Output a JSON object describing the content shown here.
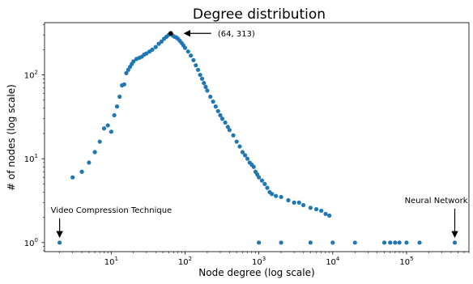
{
  "chart_data": {
    "type": "scatter",
    "title": "Degree distribution",
    "xlabel": "Node degree (log scale)",
    "ylabel": "# of nodes (log scale)",
    "xscale": "log",
    "yscale": "log",
    "xlim": [
      1.25,
      700000
    ],
    "ylim": [
      0.78,
      420
    ],
    "grid": false,
    "legend": "none",
    "marker_color": "#1f77b4",
    "highlight_color": "#000000",
    "x_ticks": [
      {
        "base": "10",
        "exp": "1",
        "value": 10
      },
      {
        "base": "10",
        "exp": "2",
        "value": 100
      },
      {
        "base": "10",
        "exp": "3",
        "value": 1000
      },
      {
        "base": "10",
        "exp": "4",
        "value": 10000
      },
      {
        "base": "10",
        "exp": "5",
        "value": 100000
      }
    ],
    "y_ticks": [
      {
        "base": "10",
        "exp": "0",
        "value": 1
      },
      {
        "base": "10",
        "exp": "1",
        "value": 10
      },
      {
        "base": "10",
        "exp": "2",
        "value": 100
      }
    ],
    "series": [
      {
        "points": [
          [
            2,
            1
          ],
          [
            3,
            6
          ],
          [
            4,
            7
          ],
          [
            5,
            9
          ],
          [
            6,
            12
          ],
          [
            7,
            16
          ],
          [
            8,
            23
          ],
          [
            9,
            25
          ],
          [
            10,
            21
          ],
          [
            11,
            33
          ],
          [
            12,
            42
          ],
          [
            13,
            55
          ],
          [
            14,
            75
          ],
          [
            15,
            77
          ],
          [
            16,
            105
          ],
          [
            17,
            115
          ],
          [
            18,
            125
          ],
          [
            19,
            135
          ],
          [
            20,
            145
          ],
          [
            22,
            155
          ],
          [
            24,
            160
          ],
          [
            26,
            165
          ],
          [
            28,
            175
          ],
          [
            30,
            180
          ],
          [
            33,
            190
          ],
          [
            36,
            200
          ],
          [
            40,
            215
          ],
          [
            44,
            235
          ],
          [
            48,
            250
          ],
          [
            52,
            270
          ],
          [
            56,
            285
          ],
          [
            60,
            300
          ],
          [
            64,
            313
          ],
          [
            68,
            295
          ],
          [
            72,
            285
          ],
          [
            76,
            280
          ],
          [
            80,
            270
          ],
          [
            85,
            255
          ],
          [
            90,
            240
          ],
          [
            95,
            225
          ],
          [
            100,
            210
          ],
          [
            110,
            190
          ],
          [
            120,
            170
          ],
          [
            130,
            150
          ],
          [
            140,
            130
          ],
          [
            150,
            115
          ],
          [
            160,
            100
          ],
          [
            170,
            90
          ],
          [
            180,
            80
          ],
          [
            190,
            72
          ],
          [
            200,
            65
          ],
          [
            220,
            55
          ],
          [
            240,
            48
          ],
          [
            260,
            42
          ],
          [
            280,
            37
          ],
          [
            300,
            33
          ],
          [
            320,
            30
          ],
          [
            350,
            27
          ],
          [
            380,
            24
          ],
          [
            400,
            22
          ],
          [
            450,
            19
          ],
          [
            500,
            16
          ],
          [
            550,
            14
          ],
          [
            600,
            12
          ],
          [
            650,
            11
          ],
          [
            700,
            10
          ],
          [
            750,
            9
          ],
          [
            800,
            8.5
          ],
          [
            850,
            8
          ],
          [
            900,
            7
          ],
          [
            950,
            6.5
          ],
          [
            1000,
            6
          ],
          [
            1100,
            5.5
          ],
          [
            1200,
            5
          ],
          [
            1300,
            4.5
          ],
          [
            1400,
            4
          ],
          [
            1500,
            3.8
          ],
          [
            1700,
            3.6
          ],
          [
            2000,
            3.5
          ],
          [
            2500,
            3.2
          ],
          [
            3000,
            3
          ],
          [
            3500,
            3
          ],
          [
            4000,
            2.8
          ],
          [
            5000,
            2.6
          ],
          [
            6000,
            2.5
          ],
          [
            7000,
            2.4
          ],
          [
            8000,
            2.2
          ],
          [
            9000,
            2.1
          ],
          [
            1000,
            1
          ],
          [
            2000,
            1
          ],
          [
            5000,
            1
          ],
          [
            10000,
            1
          ],
          [
            20000,
            1
          ],
          [
            50000,
            1
          ],
          [
            60000,
            1
          ],
          [
            70000,
            1
          ],
          [
            80000,
            1
          ],
          [
            100000,
            1
          ],
          [
            150000,
            1
          ],
          [
            450000,
            1
          ]
        ]
      }
    ],
    "highlight_point": {
      "x": 64,
      "y": 313
    },
    "annotations": [
      {
        "text": "(64, 313)",
        "x": 64,
        "y": 313
      },
      {
        "text": "Video Compression Technique",
        "x": 2,
        "y": 1
      },
      {
        "text": "Neural Network",
        "x": 450000,
        "y": 1
      }
    ]
  }
}
